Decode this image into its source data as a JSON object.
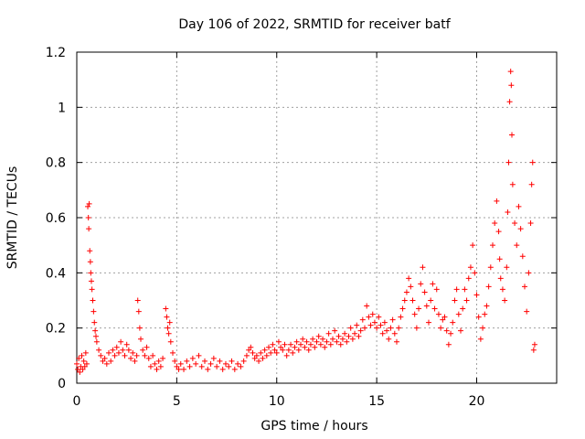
{
  "chart_data": {
    "type": "scatter",
    "title": "Day 106 of 2022, SRMTID for receiver batf",
    "xlabel": "GPS time / hours",
    "ylabel": "SRMTID / TECUs",
    "xlim": [
      0,
      24
    ],
    "ylim": [
      0,
      1.2
    ],
    "x_ticks": [
      0,
      5,
      10,
      15,
      20
    ],
    "x_tick_labels": [
      "0",
      "5",
      "10",
      "15",
      "20"
    ],
    "y_ticks": [
      0,
      0.2,
      0.4,
      0.6,
      0.8,
      1.0,
      1.2
    ],
    "y_tick_labels": [
      "0",
      "0.2",
      "0.4",
      "0.6",
      "0.8",
      "1",
      "1.2"
    ],
    "grid": true,
    "marker": "+",
    "color": "#ff0000",
    "series": [
      {
        "name": "SRMTID",
        "points": [
          [
            0.0,
            0.07
          ],
          [
            0.05,
            0.05
          ],
          [
            0.1,
            0.09
          ],
          [
            0.15,
            0.04
          ],
          [
            0.2,
            0.06
          ],
          [
            0.25,
            0.1
          ],
          [
            0.3,
            0.05
          ],
          [
            0.35,
            0.08
          ],
          [
            0.4,
            0.06
          ],
          [
            0.45,
            0.11
          ],
          [
            0.5,
            0.07
          ],
          [
            0.55,
            0.64
          ],
          [
            0.58,
            0.6
          ],
          [
            0.6,
            0.56
          ],
          [
            0.62,
            0.65
          ],
          [
            0.65,
            0.48
          ],
          [
            0.68,
            0.44
          ],
          [
            0.7,
            0.4
          ],
          [
            0.73,
            0.37
          ],
          [
            0.76,
            0.34
          ],
          [
            0.8,
            0.3
          ],
          [
            0.84,
            0.26
          ],
          [
            0.88,
            0.22
          ],
          [
            0.92,
            0.19
          ],
          [
            0.96,
            0.17
          ],
          [
            1.0,
            0.15
          ],
          [
            1.1,
            0.12
          ],
          [
            1.2,
            0.1
          ],
          [
            1.3,
            0.08
          ],
          [
            1.4,
            0.09
          ],
          [
            1.5,
            0.07
          ],
          [
            1.6,
            0.11
          ],
          [
            1.7,
            0.08
          ],
          [
            1.8,
            0.12
          ],
          [
            1.9,
            0.1
          ],
          [
            2.0,
            0.13
          ],
          [
            2.1,
            0.11
          ],
          [
            2.2,
            0.15
          ],
          [
            2.3,
            0.12
          ],
          [
            2.4,
            0.1
          ],
          [
            2.5,
            0.14
          ],
          [
            2.6,
            0.12
          ],
          [
            2.7,
            0.09
          ],
          [
            2.8,
            0.11
          ],
          [
            2.9,
            0.08
          ],
          [
            3.0,
            0.1
          ],
          [
            3.05,
            0.3
          ],
          [
            3.1,
            0.26
          ],
          [
            3.15,
            0.2
          ],
          [
            3.2,
            0.16
          ],
          [
            3.3,
            0.12
          ],
          [
            3.4,
            0.1
          ],
          [
            3.5,
            0.13
          ],
          [
            3.6,
            0.09
          ],
          [
            3.7,
            0.06
          ],
          [
            3.8,
            0.1
          ],
          [
            3.9,
            0.07
          ],
          [
            4.0,
            0.05
          ],
          [
            4.1,
            0.08
          ],
          [
            4.2,
            0.06
          ],
          [
            4.3,
            0.09
          ],
          [
            4.45,
            0.27
          ],
          [
            4.5,
            0.24
          ],
          [
            4.55,
            0.2
          ],
          [
            4.6,
            0.18
          ],
          [
            4.65,
            0.22
          ],
          [
            4.7,
            0.15
          ],
          [
            4.8,
            0.11
          ],
          [
            4.9,
            0.08
          ],
          [
            5.0,
            0.06
          ],
          [
            5.1,
            0.05
          ],
          [
            5.2,
            0.07
          ],
          [
            5.35,
            0.05
          ],
          [
            5.5,
            0.08
          ],
          [
            5.65,
            0.06
          ],
          [
            5.8,
            0.09
          ],
          [
            5.95,
            0.07
          ],
          [
            6.1,
            0.1
          ],
          [
            6.25,
            0.06
          ],
          [
            6.4,
            0.08
          ],
          [
            6.55,
            0.05
          ],
          [
            6.7,
            0.07
          ],
          [
            6.85,
            0.09
          ],
          [
            7.0,
            0.06
          ],
          [
            7.15,
            0.08
          ],
          [
            7.3,
            0.05
          ],
          [
            7.45,
            0.07
          ],
          [
            7.6,
            0.06
          ],
          [
            7.75,
            0.08
          ],
          [
            7.9,
            0.05
          ],
          [
            8.05,
            0.07
          ],
          [
            8.2,
            0.06
          ],
          [
            8.35,
            0.08
          ],
          [
            8.5,
            0.1
          ],
          [
            8.6,
            0.12
          ],
          [
            8.7,
            0.13
          ],
          [
            8.8,
            0.11
          ],
          [
            8.9,
            0.09
          ],
          [
            9.0,
            0.1
          ],
          [
            9.1,
            0.08
          ],
          [
            9.2,
            0.11
          ],
          [
            9.3,
            0.09
          ],
          [
            9.4,
            0.12
          ],
          [
            9.5,
            0.1
          ],
          [
            9.6,
            0.13
          ],
          [
            9.7,
            0.11
          ],
          [
            9.8,
            0.14
          ],
          [
            9.9,
            0.12
          ],
          [
            10.0,
            0.11
          ],
          [
            10.1,
            0.15
          ],
          [
            10.2,
            0.13
          ],
          [
            10.3,
            0.12
          ],
          [
            10.4,
            0.14
          ],
          [
            10.5,
            0.1
          ],
          [
            10.6,
            0.12
          ],
          [
            10.7,
            0.14
          ],
          [
            10.8,
            0.11
          ],
          [
            10.9,
            0.13
          ],
          [
            11.0,
            0.15
          ],
          [
            11.1,
            0.12
          ],
          [
            11.2,
            0.14
          ],
          [
            11.3,
            0.16
          ],
          [
            11.4,
            0.13
          ],
          [
            11.5,
            0.15
          ],
          [
            11.6,
            0.12
          ],
          [
            11.7,
            0.14
          ],
          [
            11.8,
            0.16
          ],
          [
            11.9,
            0.13
          ],
          [
            12.0,
            0.15
          ],
          [
            12.1,
            0.17
          ],
          [
            12.2,
            0.14
          ],
          [
            12.3,
            0.16
          ],
          [
            12.4,
            0.13
          ],
          [
            12.5,
            0.15
          ],
          [
            12.6,
            0.18
          ],
          [
            12.7,
            0.14
          ],
          [
            12.8,
            0.16
          ],
          [
            12.9,
            0.19
          ],
          [
            13.0,
            0.15
          ],
          [
            13.1,
            0.17
          ],
          [
            13.2,
            0.14
          ],
          [
            13.3,
            0.16
          ],
          [
            13.4,
            0.18
          ],
          [
            13.5,
            0.15
          ],
          [
            13.6,
            0.17
          ],
          [
            13.7,
            0.2
          ],
          [
            13.8,
            0.16
          ],
          [
            13.9,
            0.18
          ],
          [
            14.0,
            0.21
          ],
          [
            14.1,
            0.17
          ],
          [
            14.2,
            0.19
          ],
          [
            14.3,
            0.23
          ],
          [
            14.4,
            0.2
          ],
          [
            14.5,
            0.28
          ],
          [
            14.6,
            0.24
          ],
          [
            14.7,
            0.21
          ],
          [
            14.8,
            0.25
          ],
          [
            14.9,
            0.22
          ],
          [
            15.0,
            0.2
          ],
          [
            15.1,
            0.24
          ],
          [
            15.2,
            0.21
          ],
          [
            15.3,
            0.18
          ],
          [
            15.4,
            0.22
          ],
          [
            15.5,
            0.19
          ],
          [
            15.6,
            0.16
          ],
          [
            15.7,
            0.2
          ],
          [
            15.8,
            0.23
          ],
          [
            15.9,
            0.18
          ],
          [
            16.0,
            0.15
          ],
          [
            16.1,
            0.2
          ],
          [
            16.2,
            0.24
          ],
          [
            16.3,
            0.27
          ],
          [
            16.4,
            0.3
          ],
          [
            16.5,
            0.33
          ],
          [
            16.6,
            0.38
          ],
          [
            16.7,
            0.35
          ],
          [
            16.8,
            0.3
          ],
          [
            16.9,
            0.25
          ],
          [
            17.0,
            0.2
          ],
          [
            17.1,
            0.27
          ],
          [
            17.2,
            0.36
          ],
          [
            17.3,
            0.42
          ],
          [
            17.4,
            0.33
          ],
          [
            17.5,
            0.28
          ],
          [
            17.6,
            0.22
          ],
          [
            17.7,
            0.3
          ],
          [
            17.8,
            0.36
          ],
          [
            17.9,
            0.27
          ],
          [
            18.0,
            0.34
          ],
          [
            18.1,
            0.25
          ],
          [
            18.2,
            0.2
          ],
          [
            18.3,
            0.23
          ],
          [
            18.4,
            0.24
          ],
          [
            18.5,
            0.19
          ],
          [
            18.6,
            0.14
          ],
          [
            18.7,
            0.18
          ],
          [
            18.8,
            0.22
          ],
          [
            18.9,
            0.3
          ],
          [
            19.0,
            0.34
          ],
          [
            19.1,
            0.25
          ],
          [
            19.2,
            0.19
          ],
          [
            19.3,
            0.27
          ],
          [
            19.4,
            0.34
          ],
          [
            19.5,
            0.3
          ],
          [
            19.6,
            0.38
          ],
          [
            19.7,
            0.42
          ],
          [
            19.8,
            0.5
          ],
          [
            19.9,
            0.4
          ],
          [
            20.0,
            0.32
          ],
          [
            20.1,
            0.24
          ],
          [
            20.2,
            0.16
          ],
          [
            20.3,
            0.2
          ],
          [
            20.4,
            0.25
          ],
          [
            20.5,
            0.28
          ],
          [
            20.6,
            0.35
          ],
          [
            20.7,
            0.42
          ],
          [
            20.8,
            0.5
          ],
          [
            20.9,
            0.58
          ],
          [
            21.0,
            0.66
          ],
          [
            21.1,
            0.55
          ],
          [
            21.15,
            0.45
          ],
          [
            21.2,
            0.38
          ],
          [
            21.3,
            0.34
          ],
          [
            21.4,
            0.3
          ],
          [
            21.5,
            0.42
          ],
          [
            21.55,
            0.62
          ],
          [
            21.6,
            0.8
          ],
          [
            21.65,
            1.02
          ],
          [
            21.7,
            1.13
          ],
          [
            21.73,
            1.08
          ],
          [
            21.76,
            0.9
          ],
          [
            21.8,
            0.72
          ],
          [
            21.9,
            0.58
          ],
          [
            22.0,
            0.5
          ],
          [
            22.1,
            0.64
          ],
          [
            22.2,
            0.56
          ],
          [
            22.3,
            0.46
          ],
          [
            22.4,
            0.35
          ],
          [
            22.5,
            0.26
          ],
          [
            22.6,
            0.4
          ],
          [
            22.7,
            0.58
          ],
          [
            22.75,
            0.72
          ],
          [
            22.8,
            0.8
          ],
          [
            22.85,
            0.12
          ],
          [
            22.9,
            0.14
          ]
        ]
      }
    ]
  }
}
